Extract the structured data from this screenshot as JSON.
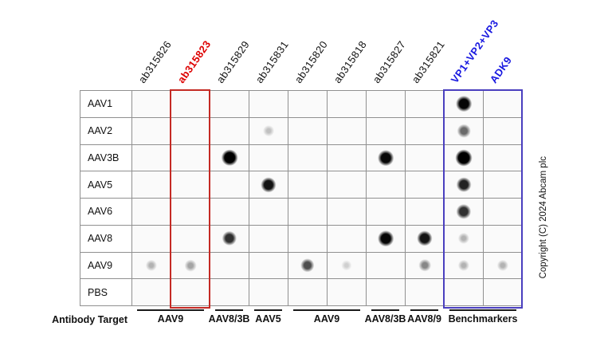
{
  "figure": {
    "copyright": "Copyright (C) 2024 Abcam plc",
    "bottom_axis_label": "Antibody Target"
  },
  "colors": {
    "highlight_red": "#c42a24",
    "highlight_blue": "#4a3fbf",
    "header_red": "#dd0000",
    "header_blue": "#1717e0",
    "grid_line": "#909090",
    "blot_bg": "#fafafa",
    "dot": "#000000"
  },
  "chart_data": {
    "type": "heatmap",
    "columns": [
      "ab315826",
      "ab315823",
      "ab315829",
      "ab315831",
      "ab315820",
      "ab315818",
      "ab315827",
      "ab315821",
      "VP1+VP2+VP3",
      "ADK9"
    ],
    "column_colors": [
      "black",
      "red",
      "black",
      "black",
      "black",
      "black",
      "black",
      "black",
      "blue",
      "blue"
    ],
    "rows": [
      "AAV1",
      "AAV2",
      "AAV3B",
      "AAV5",
      "AAV6",
      "AAV8",
      "AAV9",
      "PBS"
    ],
    "value_note": "relative dot-blot signal intensity, 0-1, estimated from pixels",
    "intensities": [
      [
        0,
        0,
        0,
        0,
        0,
        0,
        0,
        0,
        0.85,
        0
      ],
      [
        0,
        0,
        0,
        0.2,
        0,
        0,
        0,
        0,
        0.5,
        0
      ],
      [
        0,
        0,
        0.95,
        0,
        0,
        0,
        0.85,
        0,
        1,
        0
      ],
      [
        0,
        0,
        0,
        0.8,
        0,
        0,
        0,
        0,
        0.75,
        0
      ],
      [
        0,
        0,
        0,
        0,
        0,
        0,
        0,
        0,
        0.7,
        0
      ],
      [
        0,
        0,
        0.7,
        0,
        0,
        0,
        0.85,
        0.8,
        0.25,
        0
      ],
      [
        0.25,
        0.3,
        0,
        0,
        0.6,
        0.15,
        0,
        0.4,
        0.25,
        0.25
      ],
      [
        0,
        0,
        0,
        0,
        0,
        0,
        0,
        0,
        0,
        0
      ]
    ],
    "highlighted_column_red": "ab315823",
    "highlighted_columns_blue": [
      "VP1+VP2+VP3",
      "ADK9"
    ],
    "target_groups": [
      {
        "label": "AAV9",
        "span": 2
      },
      {
        "label": "AAV8/3B",
        "span": 1
      },
      {
        "label": "AAV5",
        "span": 1
      },
      {
        "label": "AAV9",
        "span": 2
      },
      {
        "label": "AAV8/3B",
        "span": 1
      },
      {
        "label": "AAV8/9",
        "span": 1
      },
      {
        "label": "Benchmarkers",
        "span": 2
      }
    ]
  }
}
